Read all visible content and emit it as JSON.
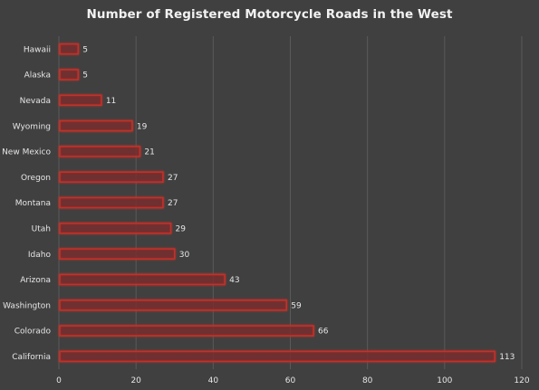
{
  "chart_data": {
    "type": "bar",
    "orientation": "horizontal",
    "title": "Number of Registered Motorcycle Roads in the West",
    "xlabel": "",
    "ylabel": "",
    "categories": [
      "Hawaii",
      "Alaska",
      "Nevada",
      "Wyoming",
      "New Mexico",
      "Oregon",
      "Montana",
      "Utah",
      "Idaho",
      "Arizona",
      "Washington",
      "Colorado",
      "California"
    ],
    "values": [
      5,
      5,
      11,
      19,
      21,
      27,
      27,
      29,
      30,
      43,
      59,
      66,
      113
    ],
    "xlim": [
      0,
      120
    ],
    "xticks": [
      0,
      20,
      40,
      60,
      80,
      100,
      120
    ],
    "grid": true,
    "legend": "none",
    "data_labels": true,
    "colors": {
      "background": "#404040",
      "gridline": "#5a5a5a",
      "bar_fill": "#7a2a2a",
      "bar_edge": "#c0302a",
      "text": "#e6e6e6",
      "title": "#f2f2f2"
    }
  }
}
